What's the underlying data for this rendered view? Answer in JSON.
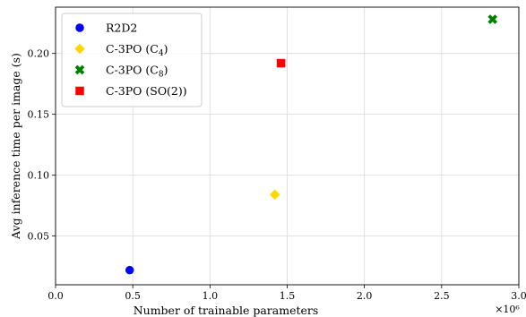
{
  "chart_data": {
    "type": "scatter",
    "title": "",
    "xlabel": "Number of trainable parameters",
    "ylabel": "Avg inference time per image (s)",
    "x_scale_note": "×10⁶",
    "xlim": [
      0.0,
      3.0
    ],
    "ylim": [
      0.01,
      0.238
    ],
    "xticks": [
      0.0,
      0.5,
      1.0,
      1.5,
      2.0,
      2.5,
      3.0
    ],
    "xtick_labels": [
      "0.0",
      "0.5",
      "1.0",
      "1.5",
      "2.0",
      "2.5",
      "3.0"
    ],
    "yticks": [
      0.05,
      0.1,
      0.15,
      0.2
    ],
    "ytick_labels": [
      "0.05",
      "0.10",
      "0.15",
      "0.20"
    ],
    "grid": true,
    "legend_position": "top-left",
    "series": [
      {
        "name": "R2D2",
        "marker": "circle",
        "color": "#0000ff",
        "x": [
          0.48
        ],
        "y": [
          0.022
        ]
      },
      {
        "name": "C-3PO (C",
        "name_sub": "4",
        "name_suffix": ")",
        "marker": "diamond",
        "color": "#ffd700",
        "x": [
          1.42
        ],
        "y": [
          0.084
        ]
      },
      {
        "name": "C-3PO (C",
        "name_sub": "8",
        "name_suffix": ")",
        "marker": "x",
        "color": "#008000",
        "x": [
          2.83
        ],
        "y": [
          0.228
        ]
      },
      {
        "name": "C-3PO (SO(2))",
        "name_sub": "",
        "name_suffix": "",
        "marker": "square",
        "color": "#ff0000",
        "x": [
          1.46
        ],
        "y": [
          0.192
        ]
      }
    ]
  }
}
